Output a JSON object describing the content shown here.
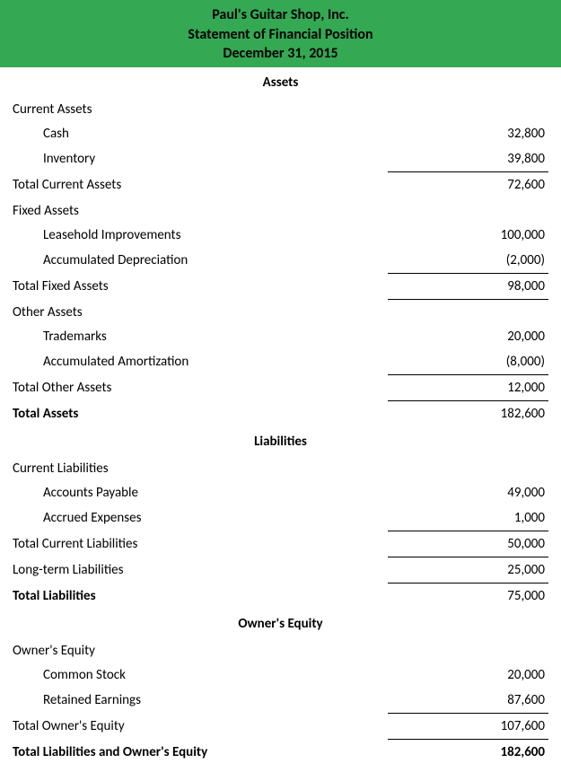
{
  "header": {
    "company": "Paul's Guitar Shop, Inc.",
    "title": "Statement of Financial Position",
    "date": "December 31, 2015",
    "background_color": "#34a853",
    "text_color": "#000000",
    "fontsize": 16
  },
  "colors": {
    "page_bg": "#ffffff",
    "rule": "#000000"
  },
  "typography": {
    "body_fontsize": 15,
    "section_title_fontsize": 15,
    "font_family": "Calibri"
  },
  "sections": {
    "assets": {
      "title": "Assets",
      "current": {
        "label": "Current Assets",
        "items": [
          {
            "label": "Cash",
            "value": "32,800"
          },
          {
            "label": "Inventory",
            "value": "39,800"
          }
        ],
        "total_label": "Total Current Assets",
        "total_value": "72,600"
      },
      "fixed": {
        "label": "Fixed Assets",
        "items": [
          {
            "label": "Leasehold Improvements",
            "value": "100,000"
          },
          {
            "label": "Accumulated Depreciation",
            "value": "(2,000)"
          }
        ],
        "total_label": "Total Fixed Assets",
        "total_value": "98,000"
      },
      "other": {
        "label": "Other Assets",
        "items": [
          {
            "label": "Trademarks",
            "value": "20,000"
          },
          {
            "label": "Accumulated Amortization",
            "value": "(8,000)"
          }
        ],
        "total_label": "Total Other Assets",
        "total_value": "12,000"
      },
      "grand_total_label": "Total Assets",
      "grand_total_value": "182,600"
    },
    "liabilities": {
      "title": "Liabilities",
      "current": {
        "label": "Current Liabilities",
        "items": [
          {
            "label": "Accounts Payable",
            "value": "49,000"
          },
          {
            "label": "Accrued Expenses",
            "value": "1,000"
          }
        ],
        "total_label": "Total Current Liabilities",
        "total_value": "50,000"
      },
      "longterm": {
        "label": "Long-term Liabilities",
        "value": "25,000"
      },
      "grand_total_label": "Total Liabilities",
      "grand_total_value": "75,000"
    },
    "equity": {
      "title": "Owner's Equity",
      "group": {
        "label": "Owner's Equity",
        "items": [
          {
            "label": "Common Stock",
            "value": "20,000"
          },
          {
            "label": "Retained Earnings",
            "value": "87,600"
          }
        ],
        "total_label": "Total Owner's Equity",
        "total_value": "107,600"
      },
      "grand_total_label": "Total Liabilities and Owner's Equity",
      "grand_total_value": "182,600"
    }
  }
}
